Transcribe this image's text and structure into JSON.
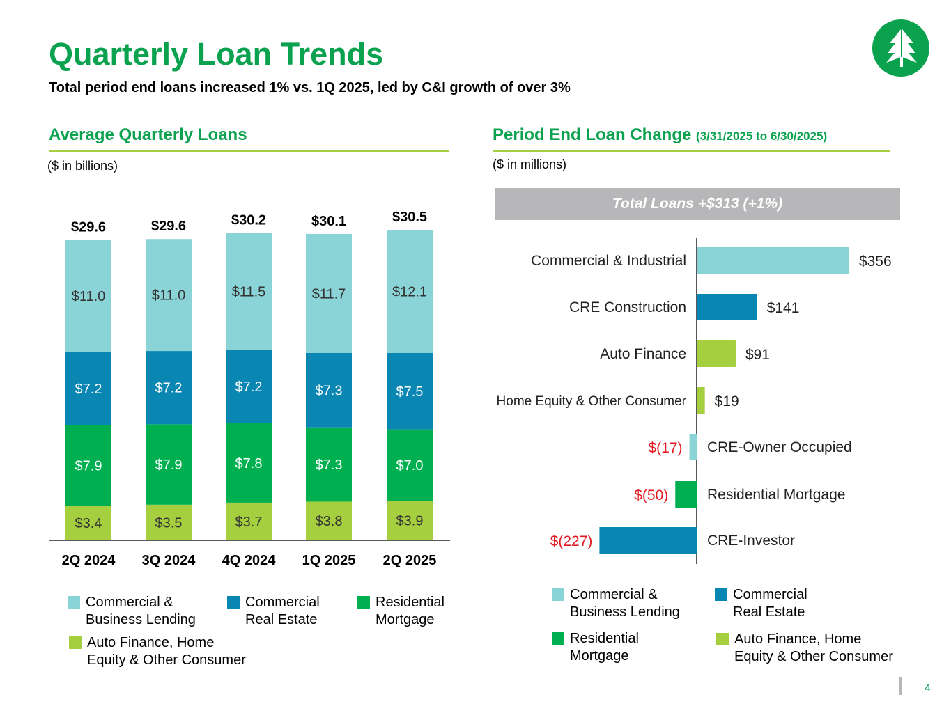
{
  "title": "Quarterly Loan Trends",
  "subtitle": "Total period end loans increased 1% vs. 1Q 2025, led by C&I growth of over 3%",
  "slide_number": "4",
  "left_panel": {
    "heading": "Average Quarterly Loans",
    "unit": "($ in billions)"
  },
  "right_panel": {
    "heading": "Period End Loan Change",
    "heading_sub": "(3/31/2025 to 6/30/2025)",
    "unit": "($ in millions)",
    "banner": "Total Loans +$313 (+1%)"
  },
  "colors": {
    "brand_green": "#0aa24e",
    "commercial_business": "#8ad3d6",
    "commercial_real_estate": "#0a86b3",
    "residential_mortgage": "#00b050",
    "auto_home_consumer": "#a6cf3f",
    "negative_text": "#e31b23",
    "banner": "#b7b7b9"
  },
  "left_legend": [
    {
      "label": "Commercial &\nBusiness Lending",
      "color": "#8ad3d6"
    },
    {
      "label": "Commercial\nReal Estate",
      "color": "#0a86b3"
    },
    {
      "label": "Residential\nMortgage",
      "color": "#00b050"
    },
    {
      "label": "Auto Finance, Home\nEquity & Other Consumer",
      "color": "#a6cf3f"
    }
  ],
  "right_legend": [
    {
      "label": "Commercial &\nBusiness Lending",
      "color": "#8ad3d6"
    },
    {
      "label": "Commercial\nReal Estate",
      "color": "#0a86b3"
    },
    {
      "label": "Residential\nMortgage",
      "color": "#00b050"
    },
    {
      "label": "Auto Finance, Home\nEquity & Other Consumer",
      "color": "#a6cf3f"
    }
  ],
  "chart_data": [
    {
      "type": "bar",
      "stacked": true,
      "title": "Average Quarterly Loans",
      "ylabel": "($ in billions)",
      "categories": [
        "2Q 2024",
        "3Q 2024",
        "4Q 2024",
        "1Q 2025",
        "2Q 2025"
      ],
      "totals": [
        29.6,
        29.6,
        30.2,
        30.1,
        30.5
      ],
      "total_labels": [
        "$29.6",
        "$29.6",
        "$30.2",
        "$30.1",
        "$30.5"
      ],
      "series": [
        {
          "name": "Auto Finance, Home Equity & Other Consumer",
          "color": "#a6cf3f",
          "values": [
            3.4,
            3.5,
            3.7,
            3.8,
            3.9
          ],
          "labels": [
            "$3.4",
            "$3.5",
            "$3.7",
            "$3.8",
            "$3.9"
          ]
        },
        {
          "name": "Residential Mortgage",
          "color": "#00b050",
          "values": [
            7.9,
            7.9,
            7.8,
            7.3,
            7.0
          ],
          "labels": [
            "$7.9",
            "$7.9",
            "$7.8",
            "$7.3",
            "$7.0"
          ]
        },
        {
          "name": "Commercial Real Estate",
          "color": "#0a86b3",
          "values": [
            7.2,
            7.2,
            7.2,
            7.3,
            7.5
          ],
          "labels": [
            "$7.2",
            "$7.2",
            "$7.2",
            "$7.3",
            "$7.5"
          ]
        },
        {
          "name": "Commercial & Business Lending",
          "color": "#8ad3d6",
          "values": [
            11.0,
            11.0,
            11.5,
            11.7,
            12.1
          ],
          "labels": [
            "$11.0",
            "$11.0",
            "$11.5",
            "$11.7",
            "$12.1"
          ]
        }
      ],
      "ylim": [
        0,
        32
      ]
    },
    {
      "type": "bar",
      "orientation": "horizontal",
      "title": "Period End Loan Change (3/31/2025 to 6/30/2025)",
      "xlabel": "($ in millions)",
      "total_label": "Total Loans +$313 (+1%)",
      "items": [
        {
          "label": "Commercial & Industrial",
          "value": 356,
          "value_label": "$356",
          "color": "#8ad3d6"
        },
        {
          "label": "CRE Construction",
          "value": 141,
          "value_label": "$141",
          "color": "#0a86b3"
        },
        {
          "label": "Auto Finance",
          "value": 91,
          "value_label": "$91",
          "color": "#a6cf3f"
        },
        {
          "label": "Home Equity & Other Consumer",
          "value": 19,
          "value_label": "$19",
          "color": "#a6cf3f"
        },
        {
          "label": "CRE-Owner Occupied",
          "value": -17,
          "value_label": "$(17)",
          "color": "#8ad3d6"
        },
        {
          "label": "Residential Mortgage",
          "value": -50,
          "value_label": "$(50)",
          "color": "#00b050"
        },
        {
          "label": "CRE-Investor",
          "value": -227,
          "value_label": "$(227)",
          "color": "#0a86b3"
        }
      ],
      "xlim": [
        -227,
        356
      ]
    }
  ]
}
